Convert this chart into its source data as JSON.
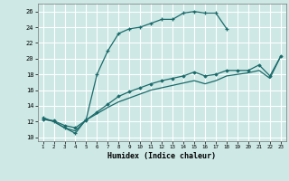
{
  "xlabel": "Humidex (Indice chaleur)",
  "bg_color": "#cde8e5",
  "grid_color": "#ffffff",
  "line_color": "#1a6b6b",
  "xlim": [
    0.5,
    23.5
  ],
  "ylim": [
    9.5,
    27
  ],
  "xticks": [
    1,
    2,
    3,
    4,
    5,
    6,
    7,
    8,
    9,
    10,
    11,
    12,
    13,
    14,
    15,
    16,
    17,
    18,
    19,
    20,
    21,
    22,
    23
  ],
  "yticks": [
    10,
    12,
    14,
    16,
    18,
    20,
    22,
    24,
    26
  ],
  "series1_x": [
    1,
    2,
    3,
    4,
    5,
    6,
    7,
    8,
    9,
    10,
    11,
    12,
    13,
    14,
    15,
    16,
    17,
    18
  ],
  "series1_y": [
    12.5,
    12.0,
    11.2,
    10.5,
    12.3,
    18.0,
    21.0,
    23.2,
    23.8,
    24.0,
    24.5,
    25.0,
    25.0,
    25.8,
    26.0,
    25.8,
    25.8,
    23.8
  ],
  "series2_x": [
    1,
    2,
    3,
    4,
    5,
    6,
    7,
    8,
    9,
    10,
    11,
    12,
    13,
    14,
    15,
    16,
    17,
    18,
    19,
    20,
    21,
    22,
    23
  ],
  "series2_y": [
    12.3,
    12.1,
    11.5,
    11.2,
    12.2,
    13.2,
    14.2,
    15.2,
    15.8,
    16.3,
    16.8,
    17.2,
    17.5,
    17.8,
    18.3,
    17.8,
    18.0,
    18.5,
    18.5,
    18.5,
    19.2,
    17.8,
    20.3
  ],
  "series3_x": [
    1,
    2,
    3,
    4,
    5,
    6,
    7,
    8,
    9,
    10,
    11,
    12,
    13,
    14,
    15,
    16,
    17,
    18,
    19,
    20,
    21,
    22,
    23
  ],
  "series3_y": [
    12.3,
    12.0,
    11.2,
    10.8,
    12.2,
    13.0,
    13.8,
    14.5,
    15.0,
    15.5,
    16.0,
    16.3,
    16.6,
    16.9,
    17.2,
    16.8,
    17.2,
    17.8,
    18.0,
    18.2,
    18.5,
    17.5,
    20.3
  ]
}
